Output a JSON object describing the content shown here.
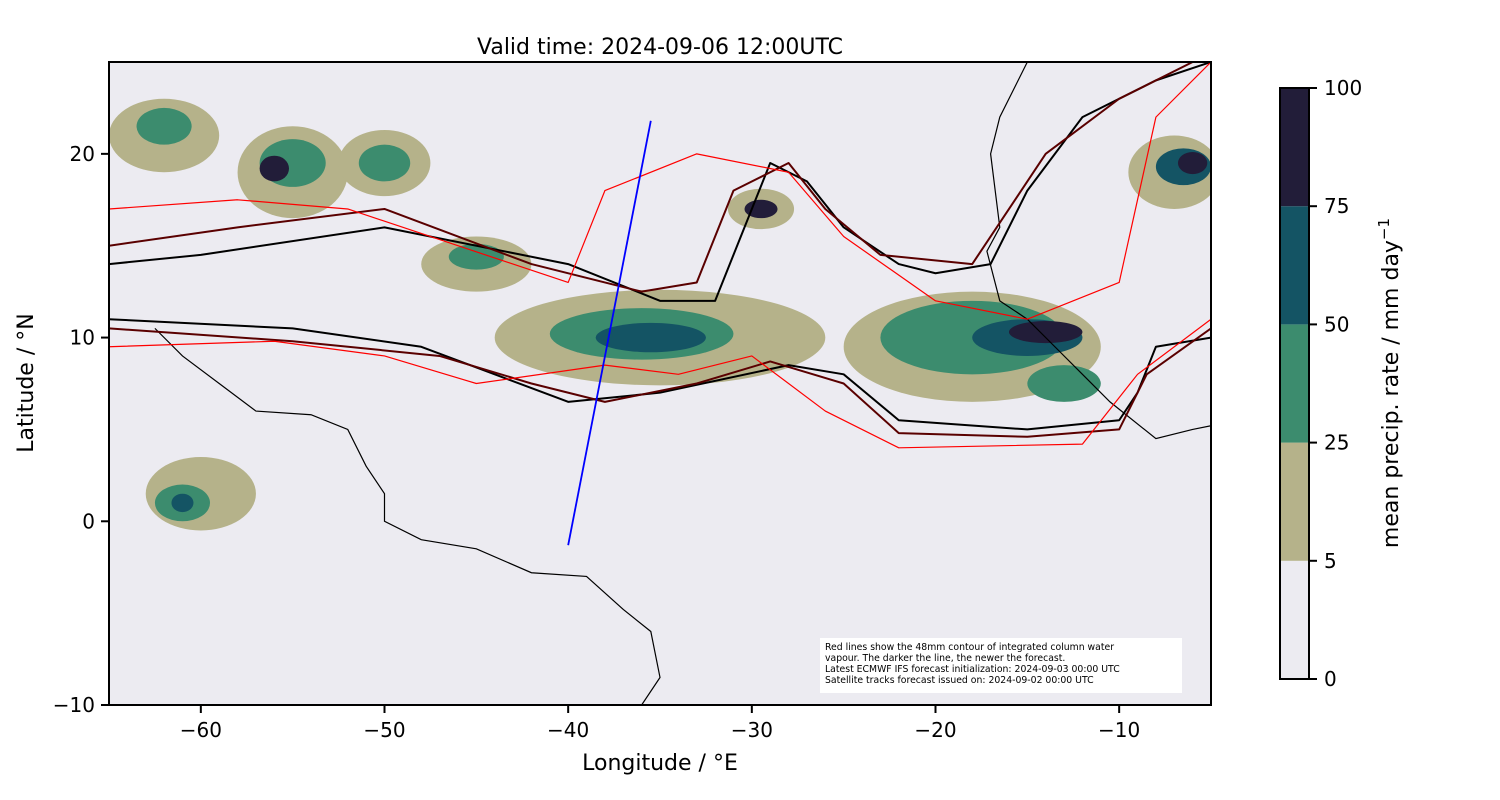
{
  "chart_data": {
    "type": "heatmap",
    "title": "Valid time: 2024-09-06 12:00UTC",
    "xlabel": "Longitude / °E",
    "ylabel": "Latitude / °N",
    "xlim": [
      -65,
      -5
    ],
    "ylim": [
      -10,
      25
    ],
    "xticks": [
      -60,
      -50,
      -40,
      -30,
      -20,
      -10
    ],
    "xtick_labels": [
      "−60",
      "−50",
      "−40",
      "−30",
      "−20",
      "−10"
    ],
    "yticks": [
      -10,
      0,
      10,
      20
    ],
    "ytick_labels": [
      "−10",
      "0",
      "10",
      "20"
    ],
    "colorbar": {
      "label": "mean precip. rate / mm day",
      "label_sup": "−1",
      "levels": [
        0,
        5,
        25,
        50,
        75,
        100
      ],
      "level_labels": [
        "0",
        "5",
        "25",
        "50",
        "75",
        "100"
      ],
      "colors": [
        "#ecebf1",
        "#b5b28a",
        "#3c8c6e",
        "#145464",
        "#221d39"
      ]
    },
    "precip_regions": [
      {
        "lon": -35,
        "lat": 10,
        "rx": 9,
        "ry": 2.6,
        "level": 1
      },
      {
        "lon": -36,
        "lat": 10.2,
        "rx": 5,
        "ry": 1.4,
        "level": 2
      },
      {
        "lon": -35.5,
        "lat": 10,
        "rx": 3,
        "ry": 0.8,
        "level": 3
      },
      {
        "lon": -18,
        "lat": 9.5,
        "rx": 7,
        "ry": 3,
        "level": 1
      },
      {
        "lon": -18,
        "lat": 10,
        "rx": 5,
        "ry": 2,
        "level": 2
      },
      {
        "lon": -15,
        "lat": 10,
        "rx": 3,
        "ry": 1,
        "level": 3
      },
      {
        "lon": -14,
        "lat": 10.3,
        "rx": 2,
        "ry": 0.6,
        "level": 4
      },
      {
        "lon": -45,
        "lat": 14,
        "rx": 3,
        "ry": 1.5,
        "level": 1
      },
      {
        "lon": -45,
        "lat": 14.4,
        "rx": 1.5,
        "ry": 0.7,
        "level": 2
      },
      {
        "lon": -55,
        "lat": 19,
        "rx": 3,
        "ry": 2.5,
        "level": 1
      },
      {
        "lon": -55,
        "lat": 19.5,
        "rx": 1.8,
        "ry": 1.3,
        "level": 2
      },
      {
        "lon": -56,
        "lat": 19.2,
        "rx": 0.8,
        "ry": 0.7,
        "level": 4
      },
      {
        "lon": -50,
        "lat": 19.5,
        "rx": 2.5,
        "ry": 1.8,
        "level": 1
      },
      {
        "lon": -50,
        "lat": 19.5,
        "rx": 1.4,
        "ry": 1,
        "level": 2
      },
      {
        "lon": -62,
        "lat": 21,
        "rx": 3,
        "ry": 2,
        "level": 1
      },
      {
        "lon": -62,
        "lat": 21.5,
        "rx": 1.5,
        "ry": 1,
        "level": 2
      },
      {
        "lon": -29.5,
        "lat": 17,
        "rx": 1.8,
        "ry": 1.1,
        "level": 1
      },
      {
        "lon": -29.5,
        "lat": 17,
        "rx": 0.9,
        "ry": 0.5,
        "level": 4
      },
      {
        "lon": -7,
        "lat": 19,
        "rx": 2.5,
        "ry": 2,
        "level": 1
      },
      {
        "lon": -6.5,
        "lat": 19.3,
        "rx": 1.5,
        "ry": 1,
        "level": 3
      },
      {
        "lon": -6,
        "lat": 19.5,
        "rx": 0.8,
        "ry": 0.6,
        "level": 4
      },
      {
        "lon": -60,
        "lat": 1.5,
        "rx": 3,
        "ry": 2,
        "level": 1
      },
      {
        "lon": -61,
        "lat": 1,
        "rx": 1.5,
        "ry": 1,
        "level": 2
      },
      {
        "lon": -61,
        "lat": 1,
        "rx": 0.6,
        "ry": 0.5,
        "level": 3
      },
      {
        "lon": -13,
        "lat": 7.5,
        "rx": 2,
        "ry": 1,
        "level": 2
      }
    ],
    "contours": [
      {
        "color": "#000000",
        "points": [
          [
            -65,
            14
          ],
          [
            -60,
            14.5
          ],
          [
            -50,
            16
          ],
          [
            -40,
            14
          ],
          [
            -35,
            12
          ],
          [
            -32,
            12
          ],
          [
            -30,
            17
          ],
          [
            -29,
            19.5
          ],
          [
            -27,
            18.5
          ],
          [
            -25,
            16
          ],
          [
            -22,
            14
          ],
          [
            -20,
            13.5
          ],
          [
            -17,
            14
          ],
          [
            -15,
            18
          ],
          [
            -12,
            22
          ],
          [
            -8,
            24
          ],
          [
            -5,
            25
          ]
        ]
      },
      {
        "color": "#000000",
        "points": [
          [
            -65,
            11
          ],
          [
            -55,
            10.5
          ],
          [
            -48,
            9.5
          ],
          [
            -44,
            8
          ],
          [
            -40,
            6.5
          ],
          [
            -35,
            7
          ],
          [
            -28,
            8.5
          ],
          [
            -25,
            8
          ],
          [
            -22,
            5.5
          ],
          [
            -15,
            5
          ],
          [
            -10,
            5.5
          ],
          [
            -9,
            7
          ],
          [
            -8,
            9.5
          ],
          [
            -5,
            10
          ]
        ]
      },
      {
        "color": "#5a0000",
        "points": [
          [
            -65,
            15
          ],
          [
            -58,
            16
          ],
          [
            -50,
            17
          ],
          [
            -42,
            14
          ],
          [
            -36,
            12.5
          ],
          [
            -33,
            13
          ],
          [
            -31,
            18
          ],
          [
            -28,
            19.5
          ],
          [
            -26,
            17
          ],
          [
            -23,
            14.5
          ],
          [
            -18,
            14
          ],
          [
            -14,
            20
          ],
          [
            -10,
            23
          ],
          [
            -6,
            25
          ]
        ]
      },
      {
        "color": "#5a0000",
        "points": [
          [
            -65,
            10.5
          ],
          [
            -55,
            9.8
          ],
          [
            -47,
            9
          ],
          [
            -42,
            7.5
          ],
          [
            -38,
            6.5
          ],
          [
            -33,
            7.5
          ],
          [
            -29,
            8.7
          ],
          [
            -25,
            7.5
          ],
          [
            -22,
            4.8
          ],
          [
            -15,
            4.6
          ],
          [
            -10,
            5
          ],
          [
            -8.5,
            8
          ],
          [
            -5,
            10.5
          ]
        ]
      },
      {
        "color": "#ff0000",
        "points": [
          [
            -65,
            17
          ],
          [
            -58,
            17.5
          ],
          [
            -52,
            17
          ],
          [
            -46,
            15
          ],
          [
            -40,
            13
          ],
          [
            -38,
            18
          ],
          [
            -33,
            20
          ],
          [
            -28,
            19
          ],
          [
            -25,
            15.5
          ],
          [
            -20,
            12
          ],
          [
            -15,
            11
          ],
          [
            -10,
            13
          ],
          [
            -8,
            22
          ],
          [
            -5,
            25
          ]
        ]
      },
      {
        "color": "#ff0000",
        "points": [
          [
            -65,
            9.5
          ],
          [
            -56,
            9.8
          ],
          [
            -50,
            9
          ],
          [
            -45,
            7.5
          ],
          [
            -38,
            8.5
          ],
          [
            -34,
            8
          ],
          [
            -30,
            9
          ],
          [
            -26,
            6
          ],
          [
            -22,
            4
          ],
          [
            -12,
            4.2
          ],
          [
            -9,
            8
          ],
          [
            -5,
            11
          ]
        ]
      }
    ],
    "coastlines": [
      [
        [
          -62.5,
          10.5
        ],
        [
          -61,
          9
        ],
        [
          -59,
          7.5
        ],
        [
          -57,
          6
        ],
        [
          -54,
          5.8
        ],
        [
          -52,
          5
        ],
        [
          -51,
          3
        ],
        [
          -50,
          1.5
        ],
        [
          -50,
          0
        ],
        [
          -48,
          -1
        ],
        [
          -45,
          -1.5
        ],
        [
          -42,
          -2.8
        ],
        [
          -39,
          -3
        ],
        [
          -37,
          -4.8
        ],
        [
          -35.5,
          -6
        ],
        [
          -35,
          -8.5
        ],
        [
          -36,
          -10
        ]
      ],
      [
        [
          -15,
          25
        ],
        [
          -16.5,
          22
        ],
        [
          -17,
          20
        ],
        [
          -16.5,
          16
        ],
        [
          -17.2,
          14.7
        ],
        [
          -16.5,
          12
        ],
        [
          -15,
          11
        ],
        [
          -13.5,
          9.5
        ],
        [
          -12,
          8
        ],
        [
          -10.5,
          6.5
        ],
        [
          -8,
          4.5
        ],
        [
          -6,
          5
        ],
        [
          -5,
          5.2
        ]
      ]
    ],
    "track": {
      "color": "#0000ff",
      "points": [
        [
          -40,
          -1.3
        ],
        [
          -35.5,
          21.8
        ]
      ]
    },
    "annotation": [
      "Red lines show the 48mm contour of integrated column water",
      "vapour. The darker the line, the newer the forecast.",
      "Latest ECMWF IFS forecast initialization: 2024-09-03 00:00 UTC",
      "Satellite tracks forecast issued on: 2024-09-02 00:00 UTC"
    ]
  }
}
